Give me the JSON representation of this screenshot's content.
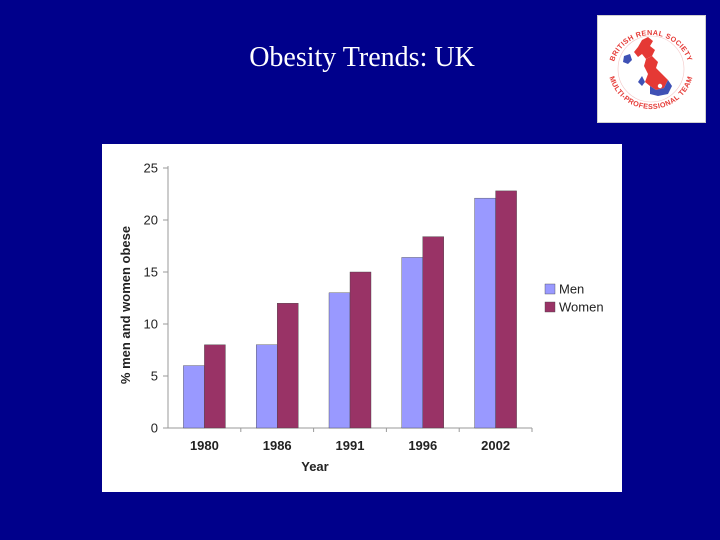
{
  "slide": {
    "title": "Obesity Trends: UK"
  },
  "logo": {
    "text_top": "BRITISH RENAL SOCIETY",
    "text_bottom": "MULTI-PROFESSIONAL TEAM",
    "colors": {
      "ring_text": "#e53935",
      "map_red": "#e53935",
      "map_blue": "#3f51b5"
    }
  },
  "chart_data": {
    "type": "bar",
    "categories": [
      "1980",
      "1986",
      "1991",
      "1996",
      "2002"
    ],
    "series": [
      {
        "name": "Men",
        "values": [
          6,
          8,
          13,
          16.4,
          22.1
        ],
        "color": "#9999ff"
      },
      {
        "name": "Women",
        "values": [
          8,
          12,
          15,
          18.4,
          22.8
        ],
        "color": "#993366"
      }
    ],
    "title": "",
    "xlabel": "Year",
    "ylabel": "% men and women obese",
    "ylim": [
      0,
      25
    ],
    "yticks": [
      0,
      5,
      10,
      15,
      20,
      25
    ],
    "grid": false,
    "legend": "right"
  }
}
